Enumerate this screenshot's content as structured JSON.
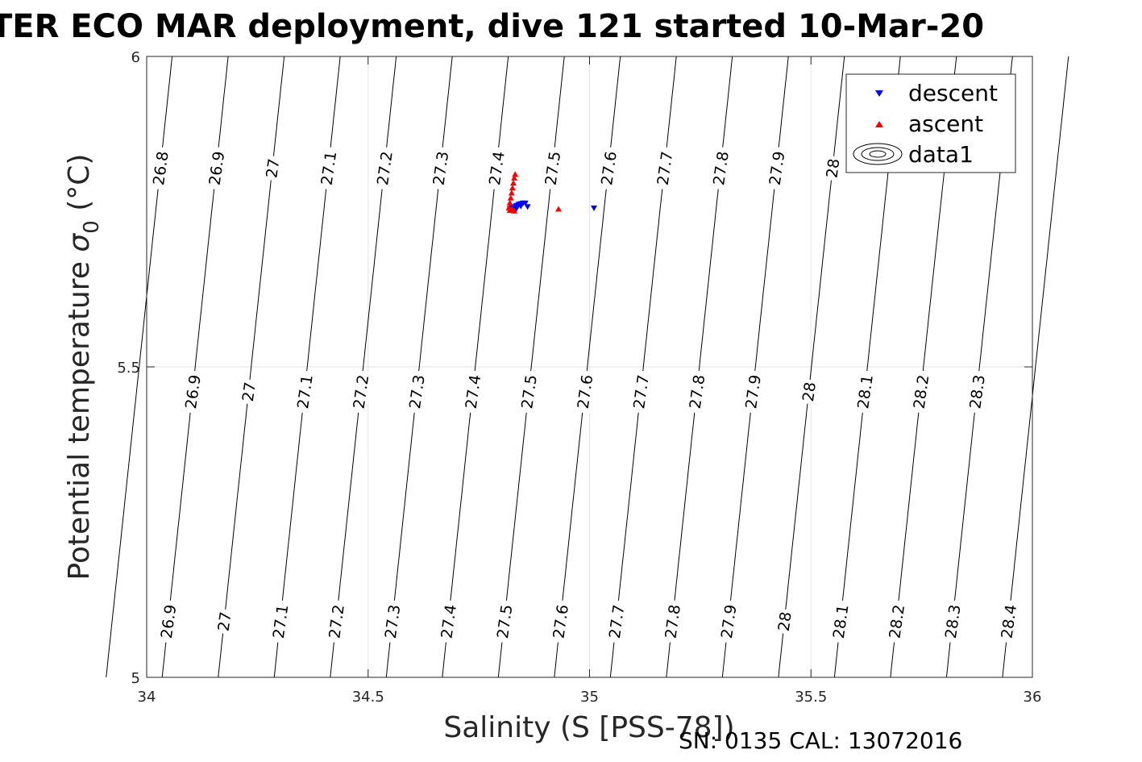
{
  "chart_data": {
    "type": "scatter",
    "title": "TER ECO MAR deployment, dive 121 started 10-Mar-20",
    "xlabel": "Salinity (S [PSS-78])",
    "ylabel_main": "Potential temperature ",
    "ylabel_sigma": "σ",
    "ylabel_sub": "0",
    "ylabel_unit": " (°C)",
    "xlim": [
      34,
      36
    ],
    "ylim": [
      5,
      6
    ],
    "x_ticks": [
      34,
      34.5,
      35,
      35.5,
      36
    ],
    "x_tick_labels": [
      "34",
      "34.5",
      "35",
      "35.5",
      "36"
    ],
    "y_ticks": [
      5,
      5.5,
      6
    ],
    "y_tick_labels": [
      "5",
      "5.5",
      "6"
    ],
    "grid": true,
    "legend_position": "top-right",
    "legend": [
      "descent",
      "ascent",
      "data1"
    ],
    "series": [
      {
        "name": "descent",
        "color": "#0000ff",
        "marker": "triangle-down",
        "x": [
          34.82,
          34.825,
          34.83,
          34.835,
          34.84,
          34.845,
          34.85,
          34.855,
          34.86,
          34.845,
          34.835,
          34.83,
          35.01
        ],
        "y": [
          5.755,
          5.757,
          5.758,
          5.76,
          5.762,
          5.763,
          5.764,
          5.764,
          5.758,
          5.759,
          5.755,
          5.753,
          5.756
        ]
      },
      {
        "name": "ascent",
        "color": "#ff0000",
        "marker": "triangle-up",
        "x": [
          34.818,
          34.82,
          34.822,
          34.824,
          34.826,
          34.828,
          34.83,
          34.832,
          34.82,
          34.825,
          34.83,
          34.93
        ],
        "y": [
          5.756,
          5.764,
          5.772,
          5.78,
          5.788,
          5.796,
          5.804,
          5.81,
          5.752,
          5.754,
          5.751,
          5.754
        ]
      }
    ],
    "contour_levels": [
      {
        "level": 26.8,
        "label": "26.8"
      },
      {
        "level": 26.9,
        "label": "26.9"
      },
      {
        "level": 27.0,
        "label": "27"
      },
      {
        "level": 27.1,
        "label": "27.1"
      },
      {
        "level": 27.2,
        "label": "27.2"
      },
      {
        "level": 27.3,
        "label": "27.3"
      },
      {
        "level": 27.4,
        "label": "27.4"
      },
      {
        "level": 27.5,
        "label": "27.5"
      },
      {
        "level": 27.6,
        "label": "27.6"
      },
      {
        "level": 27.7,
        "label": "27.7"
      },
      {
        "level": 27.8,
        "label": "27.8"
      },
      {
        "level": 27.9,
        "label": "27.9"
      },
      {
        "level": 28.0,
        "label": "28"
      },
      {
        "level": 28.1,
        "label": "28.1"
      },
      {
        "level": 28.2,
        "label": "28.2"
      },
      {
        "level": 28.3,
        "label": "28.3"
      },
      {
        "level": 28.4,
        "label": "28.4"
      }
    ],
    "contour_label_rows": [
      {
        "temperature": 5.82,
        "labels": [
          "26.8",
          "26.9",
          "27",
          "27.1",
          "27.2",
          "27.3",
          "27.4",
          "27.5",
          "27.6",
          "27.7",
          "27.8",
          "27.9",
          "28"
        ]
      },
      {
        "temperature": 5.46,
        "labels": [
          "26.9",
          "27",
          "27.1",
          "27.2",
          "27.3",
          "27.4",
          "27.5",
          "27.6",
          "27.7",
          "27.8",
          "27.9",
          "28",
          "28.1",
          "28.2",
          "28.3",
          "28.4"
        ]
      },
      {
        "temperature": 5.09,
        "labels": [
          "26.9",
          "27",
          "27.1",
          "27.2",
          "27.3",
          "27.4",
          "27.5",
          "27.6",
          "27.7",
          "27.8",
          "27.9",
          "28",
          "28.1",
          "28.2",
          "28.3",
          "28.4"
        ]
      }
    ]
  },
  "footer": "SN: 0135  CAL: 13072016"
}
